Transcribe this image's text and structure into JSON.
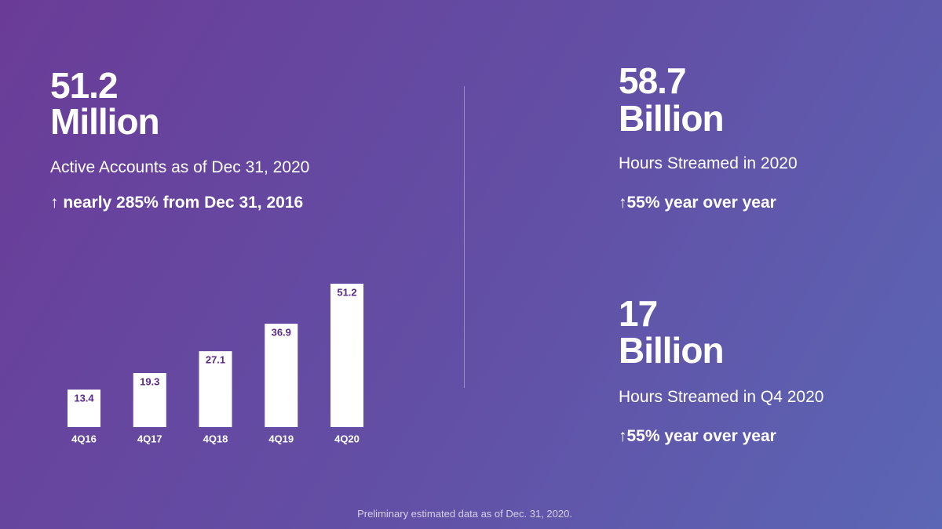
{
  "left": {
    "value": "51.2",
    "unit": "Million",
    "caption": "Active Accounts as of Dec 31, 2020",
    "change": "↑ nearly 285% from Dec 31, 2016"
  },
  "right": [
    {
      "value": "58.7",
      "unit": "Billion",
      "caption": "Hours Streamed in 2020",
      "change": "↑55% year over year"
    },
    {
      "value": "17",
      "unit": "Billion",
      "caption": "Hours Streamed in Q4 2020",
      "change": "↑55% year over year"
    }
  ],
  "chart_data": {
    "type": "bar",
    "categories": [
      "4Q16",
      "4Q17",
      "4Q18",
      "4Q19",
      "4Q20"
    ],
    "values": [
      13.4,
      19.3,
      27.1,
      36.9,
      51.2
    ],
    "color": "#ffffff"
  },
  "footer": "Preliminary estimated data as of Dec. 31, 2020."
}
